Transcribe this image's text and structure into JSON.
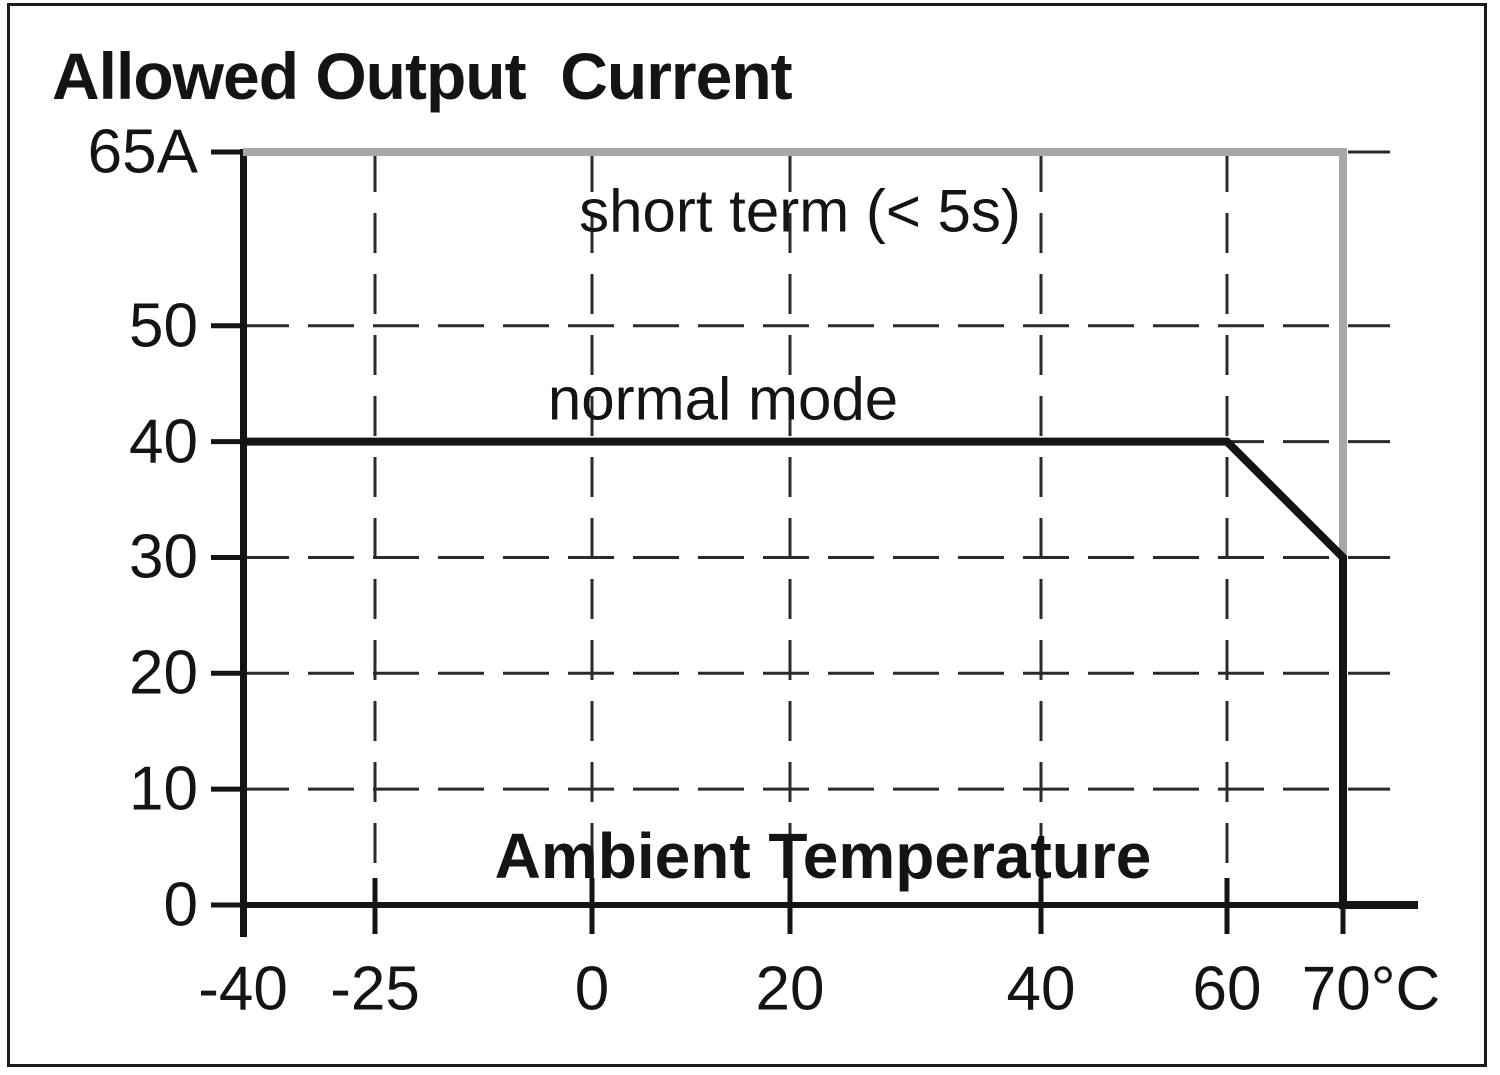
{
  "chart_data": {
    "type": "line",
    "title": "Allowed Output  Current",
    "xlabel": "Ambient Temperature",
    "x_unit": "°C",
    "y_unit": "A",
    "xlim": [
      -40,
      76
    ],
    "ylim": [
      0,
      65
    ],
    "grid": "dashed",
    "legend_position": "inline-labels",
    "x_ticks": [
      {
        "value": -40,
        "label": "-40"
      },
      {
        "value": -25,
        "label": "-25"
      },
      {
        "value": 0,
        "label": "0"
      },
      {
        "value": 20,
        "label": "20"
      },
      {
        "value": 40,
        "label": "40"
      },
      {
        "value": 60,
        "label": "60"
      },
      {
        "value": 70,
        "label": "70°C"
      }
    ],
    "y_ticks": [
      {
        "value": 0,
        "label": "0"
      },
      {
        "value": 10,
        "label": "10"
      },
      {
        "value": 20,
        "label": "20"
      },
      {
        "value": 30,
        "label": "30"
      },
      {
        "value": 40,
        "label": "40"
      },
      {
        "value": 50,
        "label": "50"
      },
      {
        "value": 65,
        "label": "65A"
      }
    ],
    "series": [
      {
        "name": "short term (< 5s)",
        "color": "#a8a8a8",
        "points": [
          [
            -40,
            65
          ],
          [
            70,
            65
          ],
          [
            70,
            30
          ]
        ]
      },
      {
        "name": "normal mode",
        "color": "#141414",
        "points": [
          [
            -40,
            40
          ],
          [
            60,
            40
          ],
          [
            70,
            30
          ],
          [
            70,
            0
          ],
          [
            76,
            0
          ]
        ]
      }
    ],
    "colors": {
      "axis": "#141414",
      "grid": "#2b2b2b",
      "short_term": "#a8a8a8",
      "normal_mode": "#141414"
    }
  }
}
